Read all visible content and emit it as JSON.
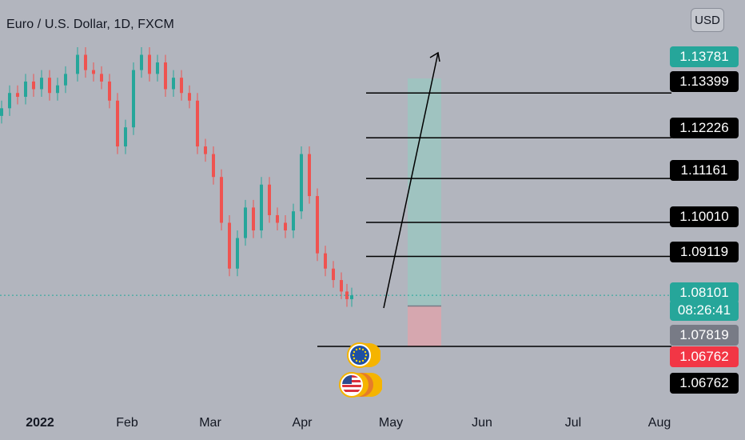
{
  "header": {
    "symbol_title": "Euro / U.S. Dollar, 1D, FXCM"
  },
  "price_scale": {
    "currency_button": "USD",
    "labels": [
      {
        "text": "1.13781",
        "bg": "#26a69a"
      },
      {
        "text": "1.13399",
        "bg": "#000000"
      },
      {
        "text": "1.12226",
        "bg": "#000000"
      },
      {
        "text": "1.11161",
        "bg": "#000000"
      },
      {
        "text": "1.10010",
        "bg": "#000000"
      },
      {
        "text": "1.09119",
        "bg": "#000000"
      },
      {
        "text": "1.08101",
        "bg": "#26a69a"
      },
      {
        "text": "08:26:41",
        "bg": "#26a69a"
      },
      {
        "text": "1.07819",
        "bg": "#787b86"
      },
      {
        "text": "1.06762",
        "bg": "#f23645"
      },
      {
        "text": "1.06762",
        "bg": "#000000"
      }
    ]
  },
  "time_axis": {
    "labels": [
      "2022",
      "Feb",
      "Mar",
      "Apr",
      "May",
      "Jun",
      "Jul",
      "Aug"
    ]
  },
  "drawings": {
    "horizontal_levels": [
      1.13399,
      1.12226,
      1.11161,
      1.1001,
      1.09119,
      1.06762
    ],
    "long_position": {
      "target": 1.13781,
      "entry": 1.07819,
      "stop": 1.06762
    },
    "current_price": 1.08101
  },
  "colors": {
    "background": "#b2b5be",
    "up_candle": "#26a69a",
    "down_candle": "#ef5350",
    "profit_zone": "#9ec4c0",
    "loss_zone": "#d8a7ae",
    "current_price_line": "#26a69a"
  },
  "events": {
    "icons": [
      "eu-flag-icon",
      "us-flag-icon"
    ]
  }
}
